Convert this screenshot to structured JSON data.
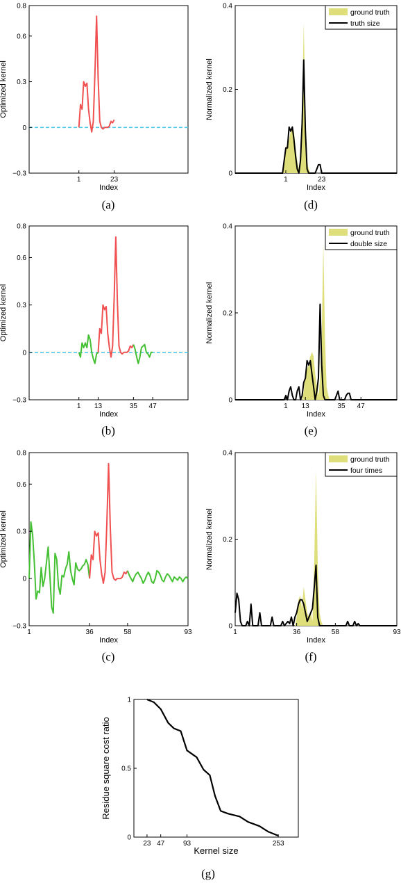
{
  "chart_data": [
    {
      "id": "a",
      "type": "line",
      "caption": "(a)",
      "xlabel": "Index",
      "ylabel": "Optimized kernel",
      "xlim": [
        -30,
        69
      ],
      "ylim": [
        -0.3,
        0.8
      ],
      "yticks": [
        -0.3,
        0,
        0.3,
        0.6,
        0.8
      ],
      "ytick_labels": [
        "−0.3",
        "0",
        "0.3",
        "0.6",
        "0.8"
      ],
      "xticks": [
        1,
        23
      ],
      "xtick_labels": [
        "1",
        "23"
      ],
      "zero_line": {
        "color": "#4dc8e8",
        "from": -30,
        "to": 69
      },
      "series": [
        {
          "color": "#f05050",
          "x": [
            1,
            2,
            3,
            4,
            5,
            6,
            7,
            8,
            9,
            10,
            11,
            12,
            13,
            14,
            15,
            16,
            17,
            18,
            19,
            20,
            21,
            22,
            23
          ],
          "y": [
            0.0,
            0.15,
            0.12,
            0.3,
            0.27,
            0.29,
            0.12,
            0.03,
            -0.03,
            0.04,
            0.35,
            0.73,
            0.32,
            0.04,
            0.0,
            -0.01,
            0.0,
            0.0,
            0.0,
            0.01,
            0.04,
            0.03,
            0.05
          ]
        }
      ]
    },
    {
      "id": "b",
      "type": "line",
      "caption": "(b)",
      "xlabel": "Index",
      "ylabel": "Optimized kernel",
      "xlim": [
        -30,
        69
      ],
      "ylim": [
        -0.3,
        0.8
      ],
      "yticks": [
        -0.3,
        0,
        0.3,
        0.6,
        0.8
      ],
      "ytick_labels": [
        "−0.3",
        "0",
        "0.3",
        "0.6",
        "0.8"
      ],
      "xticks": [
        1,
        13,
        35,
        47
      ],
      "xtick_labels": [
        "1",
        "13",
        "35",
        "47"
      ],
      "zero_line": {
        "color": "#4dc8e8",
        "from": -30,
        "to": 69
      },
      "series": [
        {
          "color": "#44c033",
          "x": [
            1,
            2,
            3,
            4,
            5,
            6,
            7,
            8,
            9,
            10,
            11,
            12,
            13
          ],
          "y": [
            0.0,
            -0.03,
            0.06,
            0.03,
            0.06,
            0.03,
            0.11,
            0.08,
            0.0,
            -0.04,
            -0.07,
            -0.01,
            0.0
          ]
        },
        {
          "color": "#f05050",
          "x": [
            13,
            14,
            15,
            16,
            17,
            18,
            19,
            20,
            21,
            22,
            23,
            24,
            25,
            26,
            27,
            28,
            29,
            30,
            31,
            32,
            33,
            34,
            35
          ],
          "y": [
            0.0,
            0.15,
            0.12,
            0.3,
            0.27,
            0.29,
            0.12,
            0.03,
            -0.03,
            0.04,
            0.35,
            0.73,
            0.32,
            0.04,
            0.0,
            -0.01,
            0.0,
            0.0,
            0.0,
            0.01,
            0.04,
            0.03,
            0.05
          ]
        },
        {
          "color": "#44c033",
          "x": [
            35,
            36,
            37,
            38,
            39,
            40,
            41,
            42,
            43,
            44,
            45,
            46,
            47
          ],
          "y": [
            0.05,
            0.02,
            -0.03,
            -0.07,
            -0.03,
            0.03,
            0.04,
            0.05,
            0.0,
            -0.01,
            -0.03,
            0.0,
            0.0
          ]
        }
      ]
    },
    {
      "id": "c",
      "type": "line",
      "caption": "(c)",
      "xlabel": "Index",
      "ylabel": "Optimized kernel",
      "xlim": [
        1,
        93
      ],
      "ylim": [
        -0.3,
        0.8
      ],
      "yticks": [
        -0.3,
        0,
        0.3,
        0.6,
        0.8
      ],
      "ytick_labels": [
        "−0.3",
        "0",
        "0.3",
        "0.6",
        "0.8"
      ],
      "xticks": [
        1,
        36,
        58,
        93
      ],
      "xtick_labels": [
        "1",
        "36",
        "58",
        "93"
      ],
      "series": [
        {
          "color": "#44c033",
          "x": [
            1,
            2,
            3,
            4,
            5,
            6,
            7,
            8,
            9,
            10,
            11,
            12,
            13,
            14,
            15,
            16,
            17,
            18,
            19,
            20,
            21,
            22,
            23,
            24,
            25,
            26,
            27,
            28,
            29,
            30,
            31,
            32,
            33,
            34,
            35,
            36
          ],
          "y": [
            0.0,
            0.36,
            0.28,
            0.1,
            -0.13,
            -0.08,
            -0.09,
            0.07,
            -0.05,
            0.0,
            0.1,
            0.2,
            0.02,
            -0.18,
            -0.22,
            0.16,
            0.12,
            -0.05,
            -0.1,
            0.02,
            0.01,
            0.06,
            0.09,
            0.17,
            0.05,
            0.0,
            -0.04,
            0.1,
            0.06,
            0.05,
            0.06,
            0.08,
            0.09,
            0.12,
            0.09,
            0.0
          ]
        },
        {
          "color": "#f05050",
          "x": [
            36,
            37,
            38,
            39,
            40,
            41,
            42,
            43,
            44,
            45,
            46,
            47,
            48,
            49,
            50,
            51,
            52,
            53,
            54,
            55,
            56,
            57,
            58
          ],
          "y": [
            0.0,
            0.15,
            0.12,
            0.3,
            0.27,
            0.29,
            0.12,
            0.03,
            -0.03,
            0.04,
            0.35,
            0.73,
            0.32,
            0.04,
            0.0,
            -0.01,
            0.0,
            0.0,
            0.0,
            0.01,
            0.04,
            0.03,
            0.05
          ]
        },
        {
          "color": "#44c033",
          "x": [
            58,
            59,
            60,
            61,
            62,
            63,
            64,
            65,
            66,
            67,
            68,
            69,
            70,
            71,
            72,
            73,
            74,
            75,
            76,
            77,
            78,
            79,
            80,
            81,
            82,
            83,
            84,
            85,
            86,
            87,
            88,
            89,
            90,
            91,
            92,
            93
          ],
          "y": [
            0.05,
            0.02,
            0.0,
            -0.02,
            0.01,
            0.03,
            0.04,
            0.02,
            0.0,
            -0.03,
            -0.01,
            0.02,
            0.04,
            0.02,
            -0.02,
            -0.03,
            0.0,
            0.05,
            0.04,
            0.02,
            -0.01,
            -0.02,
            0.01,
            0.03,
            0.02,
            0.0,
            -0.02,
            0.01,
            0.0,
            -0.01,
            0.01,
            0.0,
            -0.02,
            0.0,
            0.01,
            0.0
          ]
        }
      ]
    },
    {
      "id": "d",
      "type": "area",
      "caption": "(d)",
      "xlabel": "Index",
      "ylabel": "Normalized kernel",
      "xlim": [
        -30,
        69
      ],
      "ylim": [
        0,
        0.4
      ],
      "yticks": [
        0,
        0.2,
        0.4
      ],
      "ytick_labels": [
        "0",
        "0.2",
        "0.4"
      ],
      "xticks": [
        1,
        23
      ],
      "xtick_labels": [
        "1",
        "23"
      ],
      "legend": {
        "position": "top-right",
        "entries": [
          "ground truth",
          "truth size"
        ]
      },
      "ground_truth": {
        "color": "#dede7a",
        "x": [
          -2,
          -1,
          0,
          1,
          2,
          3,
          4,
          5,
          6,
          7,
          8,
          9,
          10,
          11,
          12,
          13,
          14,
          15,
          16,
          17
        ],
        "y": [
          0,
          0,
          0.02,
          0.06,
          0.07,
          0.08,
          0.1,
          0.11,
          0.1,
          0.06,
          0.03,
          0.01,
          0.05,
          0.15,
          0.36,
          0.14,
          0.03,
          0.01,
          0,
          0
        ]
      },
      "series": [
        {
          "name": "truth size",
          "color": "#000000",
          "x": [
            -30,
            -1,
            0,
            1,
            2,
            3,
            4,
            5,
            6,
            7,
            8,
            9,
            10,
            11,
            12,
            13,
            14,
            15,
            16,
            17,
            18,
            19,
            20,
            21,
            22,
            23,
            24,
            69
          ],
          "y": [
            0,
            0,
            0.03,
            0.06,
            0.06,
            0.11,
            0.1,
            0.11,
            0.08,
            0.04,
            0.01,
            0.0,
            0.03,
            0.12,
            0.27,
            0.1,
            0.01,
            0.0,
            0.0,
            0.0,
            0.0,
            0.0,
            0.01,
            0.02,
            0.02,
            0.0,
            0.0,
            0
          ]
        }
      ]
    },
    {
      "id": "e",
      "type": "area",
      "caption": "(e)",
      "xlabel": "Index",
      "ylabel": "Normalized kernel",
      "xlim": [
        -30,
        69
      ],
      "ylim": [
        0,
        0.4
      ],
      "yticks": [
        0,
        0.2,
        0.4
      ],
      "ytick_labels": [
        "0",
        "0.2",
        "0.4"
      ],
      "xticks": [
        1,
        13,
        35,
        47
      ],
      "xtick_labels": [
        "1",
        "13",
        "35",
        "47"
      ],
      "legend": {
        "position": "top-right",
        "entries": [
          "ground truth",
          "double size"
        ]
      },
      "ground_truth": {
        "color": "#dede7a",
        "x": [
          10,
          11,
          12,
          13,
          14,
          15,
          16,
          17,
          18,
          19,
          20,
          21,
          22,
          23,
          24,
          25,
          26,
          27,
          28,
          29
        ],
        "y": [
          0,
          0,
          0.02,
          0.06,
          0.07,
          0.08,
          0.1,
          0.11,
          0.1,
          0.06,
          0.03,
          0.01,
          0.05,
          0.15,
          0.36,
          0.14,
          0.03,
          0.01,
          0,
          0
        ]
      },
      "series": [
        {
          "name": "double size",
          "color": "#000000",
          "x": [
            -30,
            -2,
            -1,
            0,
            1,
            2,
            3,
            4,
            5,
            6,
            7,
            8,
            9,
            10,
            11,
            12,
            13,
            14,
            15,
            16,
            17,
            18,
            19,
            20,
            21,
            22,
            23,
            24,
            25,
            26,
            27,
            28,
            29,
            30,
            31,
            32,
            33,
            34,
            35,
            36,
            37,
            38,
            39,
            40,
            41,
            42,
            43,
            44,
            69
          ],
          "y": [
            0,
            0,
            0.0,
            0.0,
            0.01,
            0.0,
            0.02,
            0.03,
            0.01,
            0.0,
            0.0,
            0.02,
            0.03,
            0.0,
            0.01,
            0.04,
            0.05,
            0.09,
            0.08,
            0.09,
            0.06,
            0.03,
            0.0,
            0.02,
            0.05,
            0.22,
            0.08,
            0.01,
            0.0,
            0.0,
            0.0,
            0.0,
            0.0,
            0.0,
            0.0,
            0.01,
            0.02,
            0.0,
            0.0,
            0.0,
            0.0,
            0.01,
            0.015,
            0.015,
            0.0,
            0.0,
            0.0,
            0.0,
            0
          ]
        }
      ]
    },
    {
      "id": "f",
      "type": "area",
      "caption": "(f)",
      "xlabel": "Index",
      "ylabel": "Normalized kernel",
      "xlim": [
        1,
        93
      ],
      "ylim": [
        0,
        0.4
      ],
      "yticks": [
        0,
        0.2,
        0.4
      ],
      "ytick_labels": [
        "0",
        "0.2",
        "0.4"
      ],
      "xticks": [
        1,
        36,
        58,
        93
      ],
      "xtick_labels": [
        "1",
        "36",
        "58",
        "93"
      ],
      "legend": {
        "position": "top-right",
        "entries": [
          "ground truth",
          "four times"
        ]
      },
      "ground_truth": {
        "color": "#dede7a",
        "x": [
          34,
          35,
          36,
          37,
          38,
          39,
          40,
          41,
          42,
          43,
          44,
          45,
          46,
          47,
          48,
          49,
          50,
          51,
          52,
          53
        ],
        "y": [
          0,
          0,
          0.02,
          0.06,
          0.07,
          0.04,
          0.09,
          0.06,
          0.03,
          0.02,
          0.03,
          0.01,
          0.15,
          0.36,
          0.14,
          0.03,
          0.01,
          0,
          0,
          0
        ]
      },
      "series": [
        {
          "name": "four times",
          "color": "#000000",
          "x": [
            1,
            2,
            3,
            4,
            5,
            6,
            7,
            8,
            9,
            10,
            11,
            12,
            13,
            14,
            15,
            16,
            17,
            18,
            19,
            20,
            21,
            22,
            23,
            24,
            25,
            26,
            27,
            28,
            29,
            30,
            31,
            32,
            33,
            34,
            35,
            36,
            37,
            38,
            39,
            40,
            41,
            42,
            43,
            44,
            45,
            46,
            47,
            48,
            49,
            50,
            51,
            52,
            53,
            54,
            55,
            56,
            57,
            58,
            59,
            60,
            61,
            62,
            63,
            64,
            65,
            66,
            67,
            68,
            69,
            70,
            71,
            72,
            73,
            74,
            75,
            76,
            77,
            78,
            79,
            80,
            81,
            82,
            83,
            84,
            85,
            86,
            87,
            88,
            89,
            90,
            91,
            92,
            93
          ],
          "y": [
            0.03,
            0.075,
            0.06,
            0.01,
            0.0,
            0.0,
            0.0,
            0.01,
            0.0,
            0.05,
            0.0,
            0.0,
            0.0,
            0.0,
            0.03,
            0.0,
            0.0,
            0.0,
            0.0,
            0.0,
            0.0,
            0.02,
            0.0,
            0.0,
            0.0,
            0.0,
            0.0,
            0.01,
            0.0,
            0.005,
            0.01,
            0.005,
            0.02,
            0.0,
            0.02,
            0.03,
            0.05,
            0.06,
            0.06,
            0.05,
            0.03,
            0.01,
            0.02,
            0.03,
            0.04,
            0.09,
            0.14,
            0.02,
            0.0,
            0.0,
            0.0,
            0.0,
            0.0,
            0.0,
            0.0,
            0.0,
            0.0,
            0.0,
            0.0,
            0.0,
            0.0,
            0.0,
            0.0,
            0.0,
            0.01,
            0.0,
            0.0,
            0.0,
            0.01,
            0.0,
            0.005,
            0.0,
            0.0,
            0.0,
            0.0,
            0.0,
            0.0,
            0.0,
            0.0,
            0.0,
            0.0,
            0.0,
            0.0,
            0.0,
            0.0,
            0.0,
            0.0,
            0.0,
            0.0,
            0.0,
            0.0,
            0.0,
            0.0
          ]
        }
      ]
    },
    {
      "id": "g",
      "type": "line",
      "caption": "(g)",
      "xlabel": "Kernel size",
      "ylabel": "Residue square cost ratio",
      "xlim": [
        0,
        288
      ],
      "ylim": [
        0,
        1
      ],
      "yticks": [
        0,
        0.5,
        1
      ],
      "ytick_labels": [
        "0",
        "0.5",
        "1"
      ],
      "xticks": [
        23,
        47,
        93,
        253
      ],
      "xtick_labels": [
        "23",
        "47",
        "93",
        "253"
      ],
      "series": [
        {
          "color": "#000000",
          "x": [
            23,
            35,
            47,
            60,
            70,
            82,
            93,
            110,
            122,
            133,
            142,
            152,
            165,
            185,
            200,
            220,
            235,
            253
          ],
          "y": [
            1.0,
            0.98,
            0.93,
            0.83,
            0.79,
            0.77,
            0.63,
            0.58,
            0.49,
            0.45,
            0.3,
            0.19,
            0.17,
            0.15,
            0.11,
            0.08,
            0.04,
            0.01
          ]
        }
      ]
    }
  ]
}
